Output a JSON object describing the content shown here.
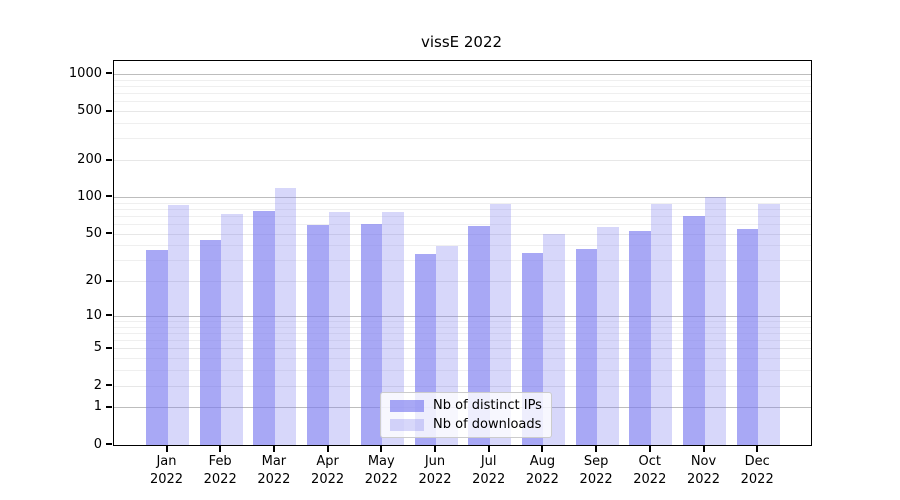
{
  "title": "vissE 2022",
  "chart_data": {
    "type": "bar",
    "title": "vissE 2022",
    "categories": [
      "Jan 2022",
      "Feb 2022",
      "Mar 2022",
      "Apr 2022",
      "May 2022",
      "Jun 2022",
      "Jul 2022",
      "Aug 2022",
      "Sep 2022",
      "Oct 2022",
      "Nov 2022",
      "Dec 2022"
    ],
    "series": [
      {
        "name": "Nb of distinct IPs",
        "color": "rgba(122,122,240,0.65)",
        "values": [
          37,
          45,
          77,
          59,
          61,
          34,
          58,
          35,
          38,
          53,
          71,
          55
        ]
      },
      {
        "name": "Nb of downloads",
        "color": "rgba(122,122,240,0.30)",
        "values": [
          87,
          73,
          120,
          76,
          76,
          40,
          89,
          50,
          57,
          89,
          100,
          88
        ]
      }
    ],
    "xlabel": "",
    "ylabel": "",
    "yscale": "log1p",
    "y_ticks": [
      0,
      1,
      2,
      5,
      10,
      20,
      50,
      100,
      200,
      500,
      1000
    ],
    "ylim": [
      0,
      1285
    ],
    "grid": "both",
    "legend_position": "lower center"
  },
  "colors": {
    "axis": "#000000",
    "major_grid": "#bdbdbd",
    "minor_grid": "#efefef",
    "legend_border": "#cccccc"
  }
}
